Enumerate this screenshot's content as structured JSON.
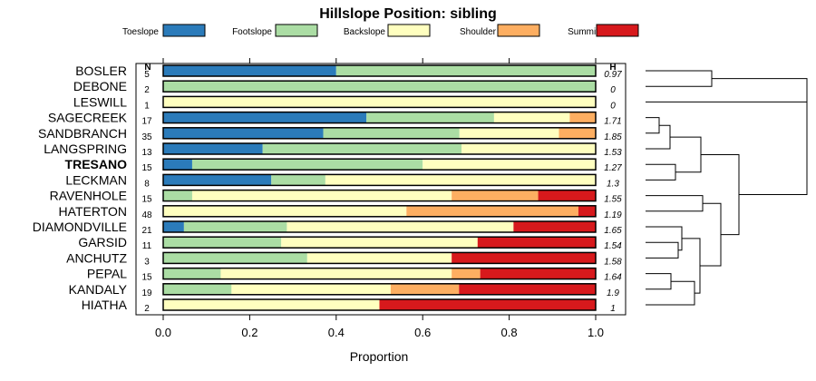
{
  "chart_data": {
    "type": "bar",
    "orientation": "horizontal",
    "stacked": true,
    "title": "Hillslope Position: sibling",
    "xlabel": "Proportion",
    "ylabel": "",
    "xlim": [
      0,
      1
    ],
    "xticks": [
      "0.0",
      "0.2",
      "0.4",
      "0.6",
      "0.8",
      "1.0"
    ],
    "tick_values": [
      0,
      0.2,
      0.4,
      0.6,
      0.8,
      1.0
    ],
    "n_header": "N",
    "h_header": "H",
    "legend_position": "top",
    "legend": [
      {
        "name": "Toeslope",
        "color": "#2b7bba"
      },
      {
        "name": "Footslope",
        "color": "#abdda4"
      },
      {
        "name": "Backslope",
        "color": "#ffffbf"
      },
      {
        "name": "Shoulder",
        "color": "#fdae61"
      },
      {
        "name": "Summit",
        "color": "#d7191c"
      }
    ],
    "categories": [
      "BOSLER",
      "DEBONE",
      "LESWILL",
      "SAGECREEK",
      "SANDBRANCH",
      "LANGSPRING",
      "TRESANO",
      "LECKMAN",
      "RAVENHOLE",
      "HATERTON",
      "DIAMONDVILLE",
      "GARSID",
      "ANCHUTZ",
      "PEPAL",
      "KANDALY",
      "HIATHA"
    ],
    "highlight": "TRESANO",
    "n": [
      "5",
      "2",
      "1",
      "17",
      "35",
      "13",
      "15",
      "8",
      "15",
      "48",
      "21",
      "11",
      "3",
      "15",
      "19",
      "2"
    ],
    "h": [
      "0.97",
      "0",
      "0",
      "1.71",
      "1.85",
      "1.53",
      "1.27",
      "1.3",
      "1.55",
      "1.19",
      "1.65",
      "1.54",
      "1.58",
      "1.64",
      "1.9",
      "1"
    ],
    "series": [
      {
        "name": "Toeslope",
        "values": [
          0.4,
          0,
          0,
          0.47,
          0.37,
          0.23,
          0.067,
          0.25,
          0,
          0,
          0.048,
          0,
          0,
          0,
          0,
          0
        ]
      },
      {
        "name": "Footslope",
        "values": [
          0.6,
          1,
          0,
          0.295,
          0.315,
          0.46,
          0.533,
          0.125,
          0.067,
          0,
          0.238,
          0.273,
          0.333,
          0.133,
          0.158,
          0
        ]
      },
      {
        "name": "Backslope",
        "values": [
          0,
          0,
          1,
          0.175,
          0.23,
          0.31,
          0.4,
          0.625,
          0.6,
          0.5625,
          0.524,
          0.454,
          0.334,
          0.534,
          0.368,
          0.5
        ]
      },
      {
        "name": "Shoulder",
        "values": [
          0,
          0,
          0,
          0.06,
          0.085,
          0,
          0,
          0,
          0.2,
          0.3975,
          0,
          0,
          0,
          0.066,
          0.158,
          0
        ]
      },
      {
        "name": "Summit",
        "values": [
          0,
          0,
          0,
          0,
          0,
          0,
          0,
          0,
          0.133,
          0.04,
          0.19,
          0.273,
          0.333,
          0.267,
          0.316,
          0.5
        ]
      }
    ]
  }
}
